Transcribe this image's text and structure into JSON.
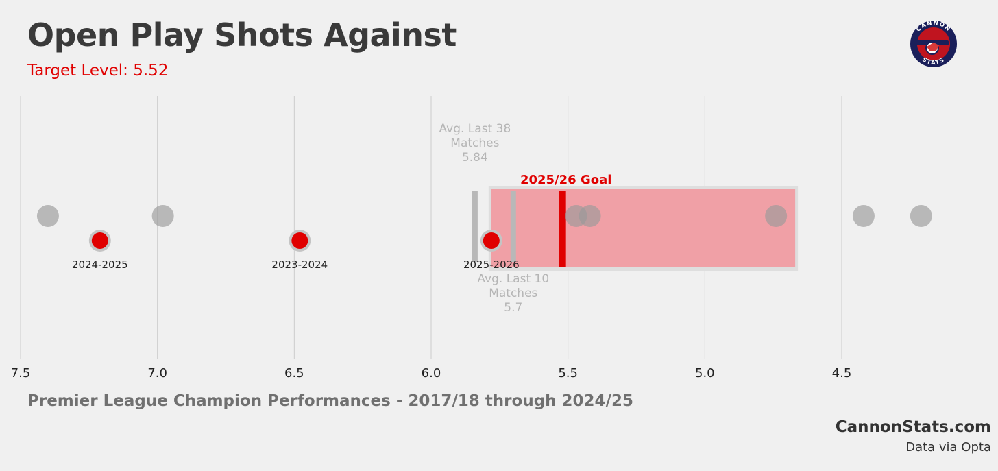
{
  "header": {
    "title": "Open Play Shots Against",
    "subtitle": "Target Level: 5.52"
  },
  "logo": {
    "icon": "cannon-stats-logo-icon",
    "text_top": "CANNON",
    "text_bottom": "STATS"
  },
  "footer": {
    "caption": "Premier League Champion Performances - 2017/18 through 2024/25",
    "site": "CannonStats.com",
    "source": "Data via Opta"
  },
  "colors": {
    "background": "#f0f0f0",
    "accent_red": "#e00000",
    "grey_point": "#b0b0b0",
    "grid": "#cccccc",
    "target_band": "#f0a0a6"
  },
  "chart_data": {
    "type": "scatter",
    "x_axis": {
      "min": 7.5,
      "max": 4.2,
      "reversed": true,
      "ticks": [
        7.5,
        7.0,
        6.5,
        6.0,
        5.5,
        5.0,
        4.5
      ],
      "tick_labels": [
        "7.5",
        "7.0",
        "6.5",
        "6.0",
        "5.5",
        "5.0",
        "4.5"
      ]
    },
    "grid": true,
    "champion_points": [
      7.4,
      6.98,
      5.47,
      5.42,
      4.74,
      4.42,
      4.21
    ],
    "highlighted_points": [
      {
        "label": "2024-2025",
        "value": 7.21
      },
      {
        "label": "2023-2024",
        "value": 6.48
      },
      {
        "label": "2025-2026",
        "value": 5.78
      }
    ],
    "target_band": {
      "from": 5.78,
      "to": 4.67
    },
    "goal": {
      "label": "2025/26 Goal",
      "value": 5.52
    },
    "reference_lines": [
      {
        "value": 5.84,
        "label_lines": [
          "Avg. Last 38",
          "Matches",
          "5.84"
        ],
        "position": "above"
      },
      {
        "value": 5.7,
        "label_lines": [
          "Avg. Last 10",
          "Matches",
          "5.7"
        ],
        "position": "below"
      }
    ]
  }
}
